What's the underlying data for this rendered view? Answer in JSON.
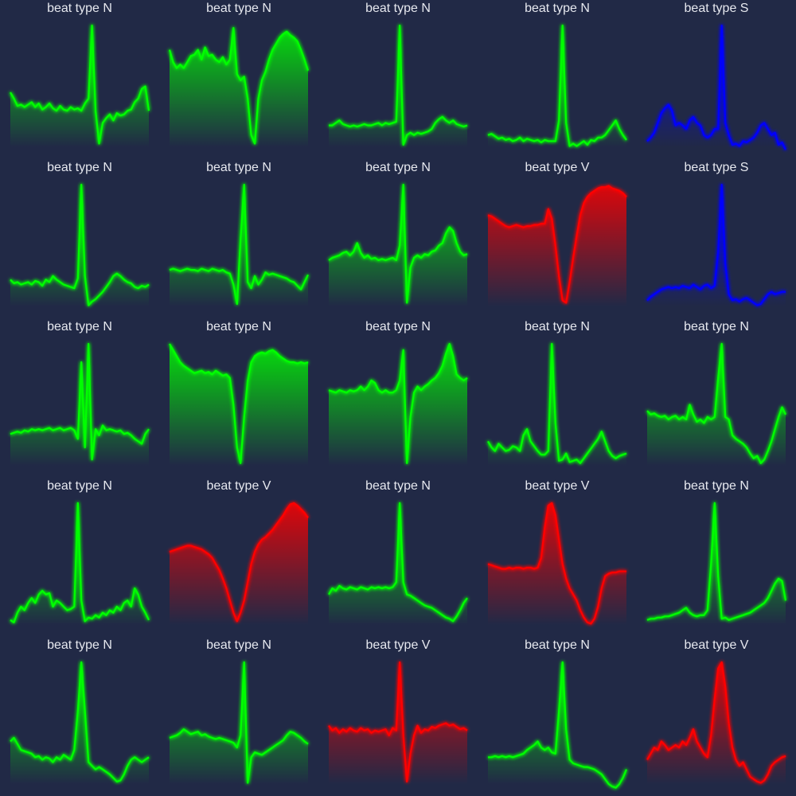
{
  "colors": {
    "background": "#212946",
    "N": "#00ff00",
    "S": "#0000ff",
    "V": "#ff0000"
  },
  "chart_data": [
    {
      "type": "line",
      "title": "beat type N",
      "beat": "N",
      "ylim": [
        0,
        1
      ],
      "values": [
        0.45,
        0.4,
        0.34,
        0.35,
        0.33,
        0.35,
        0.37,
        0.33,
        0.36,
        0.31,
        0.33,
        0.36,
        0.32,
        0.3,
        0.34,
        0.31,
        0.3,
        0.33,
        0.31,
        0.32,
        0.3,
        0.36,
        0.4,
        1.0,
        0.3,
        0.03,
        0.2,
        0.24,
        0.27,
        0.22,
        0.28,
        0.26,
        0.27,
        0.3,
        0.31,
        0.37,
        0.4,
        0.48,
        0.5,
        0.3
      ]
    },
    {
      "type": "line",
      "title": "beat type N",
      "beat": "N",
      "ylim": [
        0,
        1
      ],
      "values": [
        0.8,
        0.7,
        0.65,
        0.68,
        0.65,
        0.7,
        0.75,
        0.76,
        0.8,
        0.72,
        0.82,
        0.75,
        0.76,
        0.72,
        0.7,
        0.74,
        0.68,
        0.72,
        0.98,
        0.6,
        0.55,
        0.58,
        0.4,
        0.1,
        0.03,
        0.4,
        0.55,
        0.62,
        0.72,
        0.8,
        0.85,
        0.9,
        0.93,
        0.95,
        0.92,
        0.9,
        0.87,
        0.8,
        0.72,
        0.63
      ]
    },
    {
      "type": "line",
      "title": "beat type N",
      "beat": "N",
      "ylim": [
        0,
        1
      ],
      "values": [
        0.18,
        0.18,
        0.2,
        0.22,
        0.19,
        0.18,
        0.17,
        0.18,
        0.17,
        0.18,
        0.19,
        0.18,
        0.18,
        0.19,
        0.2,
        0.18,
        0.2,
        0.19,
        0.2,
        0.21,
        1.0,
        0.02,
        0.1,
        0.12,
        0.1,
        0.12,
        0.11,
        0.12,
        0.13,
        0.15,
        0.2,
        0.23,
        0.25,
        0.22,
        0.2,
        0.22,
        0.19,
        0.18,
        0.17,
        0.18
      ]
    },
    {
      "type": "line",
      "title": "beat type N",
      "beat": "N",
      "ylim": [
        0,
        1
      ],
      "values": [
        0.1,
        0.11,
        0.09,
        0.07,
        0.08,
        0.06,
        0.07,
        0.05,
        0.06,
        0.08,
        0.05,
        0.07,
        0.06,
        0.05,
        0.06,
        0.04,
        0.06,
        0.05,
        0.05,
        0.05,
        0.22,
        1.0,
        0.2,
        0.01,
        0.03,
        0.01,
        0.03,
        0.05,
        0.02,
        0.06,
        0.05,
        0.08,
        0.08,
        0.1,
        0.14,
        0.18,
        0.22,
        0.15,
        0.1,
        0.06
      ]
    },
    {
      "type": "line",
      "title": "beat type S",
      "beat": "S",
      "ylim": [
        0,
        1
      ],
      "values": [
        0.05,
        0.08,
        0.12,
        0.2,
        0.28,
        0.32,
        0.35,
        0.3,
        0.18,
        0.2,
        0.18,
        0.15,
        0.22,
        0.25,
        0.2,
        0.18,
        0.1,
        0.08,
        0.1,
        0.15,
        0.15,
        1.0,
        0.2,
        0.1,
        0.02,
        0.03,
        0.01,
        0.05,
        0.04,
        0.06,
        0.08,
        0.12,
        0.18,
        0.2,
        0.15,
        0.1,
        0.12,
        0.02,
        0.04,
        -0.02
      ]
    },
    {
      "type": "line",
      "title": "beat type N",
      "beat": "N",
      "ylim": [
        0,
        1
      ],
      "values": [
        0.22,
        0.19,
        0.2,
        0.18,
        0.19,
        0.2,
        0.18,
        0.21,
        0.2,
        0.17,
        0.22,
        0.2,
        0.25,
        0.22,
        0.2,
        0.18,
        0.17,
        0.16,
        0.15,
        0.23,
        1.0,
        0.25,
        0.01,
        0.04,
        0.06,
        0.09,
        0.12,
        0.16,
        0.2,
        0.25,
        0.27,
        0.25,
        0.22,
        0.2,
        0.19,
        0.16,
        0.15,
        0.17,
        0.16,
        0.18
      ]
    },
    {
      "type": "line",
      "title": "beat type N",
      "beat": "N",
      "ylim": [
        0,
        1
      ],
      "values": [
        0.3,
        0.31,
        0.3,
        0.29,
        0.3,
        0.31,
        0.3,
        0.3,
        0.29,
        0.31,
        0.3,
        0.29,
        0.31,
        0.3,
        0.29,
        0.3,
        0.28,
        0.27,
        0.18,
        0.02,
        0.55,
        1.0,
        0.2,
        0.15,
        0.25,
        0.18,
        0.22,
        0.28,
        0.26,
        0.27,
        0.26,
        0.25,
        0.24,
        0.23,
        0.21,
        0.2,
        0.17,
        0.14,
        0.2,
        0.26
      ]
    },
    {
      "type": "line",
      "title": "beat type N",
      "beat": "N",
      "ylim": [
        0,
        1
      ],
      "values": [
        0.38,
        0.4,
        0.41,
        0.42,
        0.44,
        0.45,
        0.42,
        0.45,
        0.52,
        0.44,
        0.4,
        0.42,
        0.39,
        0.4,
        0.38,
        0.39,
        0.38,
        0.39,
        0.4,
        0.38,
        0.5,
        1.0,
        0.03,
        0.32,
        0.4,
        0.42,
        0.4,
        0.43,
        0.42,
        0.45,
        0.46,
        0.5,
        0.52,
        0.6,
        0.65,
        0.62,
        0.52,
        0.45,
        0.42,
        0.43
      ]
    },
    {
      "type": "line",
      "title": "beat type V",
      "beat": "V",
      "ylim": [
        0,
        1
      ],
      "values": [
        0.75,
        0.74,
        0.72,
        0.7,
        0.68,
        0.66,
        0.65,
        0.66,
        0.67,
        0.66,
        0.65,
        0.66,
        0.66,
        0.67,
        0.67,
        0.68,
        0.68,
        0.8,
        0.72,
        0.5,
        0.25,
        0.05,
        0.03,
        0.2,
        0.4,
        0.58,
        0.75,
        0.85,
        0.9,
        0.93,
        0.95,
        0.97,
        0.98,
        0.98,
        0.99,
        0.97,
        0.96,
        0.95,
        0.93,
        0.9
      ]
    },
    {
      "type": "line",
      "title": "beat type S",
      "beat": "S",
      "ylim": [
        0,
        1
      ],
      "values": [
        0.05,
        0.08,
        0.1,
        0.12,
        0.14,
        0.15,
        0.16,
        0.15,
        0.16,
        0.15,
        0.17,
        0.16,
        0.15,
        0.18,
        0.16,
        0.14,
        0.17,
        0.18,
        0.15,
        0.17,
        0.45,
        1.0,
        0.35,
        0.1,
        0.05,
        0.06,
        0.04,
        0.06,
        0.07,
        0.05,
        0.03,
        0.01,
        0.02,
        0.06,
        0.1,
        0.12,
        0.1,
        0.11,
        0.12,
        0.12
      ]
    },
    {
      "type": "line",
      "title": "beat type N",
      "beat": "N",
      "ylim": [
        0,
        1
      ],
      "values": [
        0.26,
        0.27,
        0.28,
        0.27,
        0.29,
        0.28,
        0.3,
        0.29,
        0.3,
        0.29,
        0.3,
        0.31,
        0.29,
        0.3,
        0.31,
        0.29,
        0.3,
        0.31,
        0.29,
        0.22,
        0.85,
        0.15,
        1.0,
        0.05,
        0.3,
        0.25,
        0.33,
        0.29,
        0.3,
        0.29,
        0.28,
        0.29,
        0.26,
        0.27,
        0.25,
        0.22,
        0.2,
        0.18,
        0.26,
        0.3
      ]
    },
    {
      "type": "line",
      "title": "beat type N",
      "beat": "N",
      "ylim": [
        0,
        1
      ],
      "values": [
        1.0,
        0.95,
        0.9,
        0.85,
        0.82,
        0.8,
        0.78,
        0.76,
        0.77,
        0.78,
        0.76,
        0.77,
        0.75,
        0.78,
        0.76,
        0.74,
        0.75,
        0.72,
        0.5,
        0.15,
        0.02,
        0.4,
        0.7,
        0.85,
        0.9,
        0.92,
        0.93,
        0.92,
        0.94,
        0.95,
        0.93,
        0.9,
        0.88,
        0.86,
        0.85,
        0.85,
        0.84,
        0.85,
        0.84,
        0.85
      ]
    },
    {
      "type": "line",
      "title": "beat type N",
      "beat": "N",
      "ylim": [
        0,
        1
      ],
      "values": [
        0.62,
        0.61,
        0.6,
        0.62,
        0.61,
        0.6,
        0.62,
        0.61,
        0.62,
        0.65,
        0.62,
        0.65,
        0.7,
        0.68,
        0.62,
        0.6,
        0.62,
        0.6,
        0.6,
        0.62,
        0.7,
        0.95,
        0.02,
        0.4,
        0.6,
        0.65,
        0.62,
        0.65,
        0.67,
        0.7,
        0.72,
        0.76,
        0.82,
        0.92,
        1.0,
        0.9,
        0.75,
        0.72,
        0.7,
        0.72
      ]
    },
    {
      "type": "line",
      "title": "beat type N",
      "beat": "N",
      "ylim": [
        0,
        1
      ],
      "values": [
        0.2,
        0.15,
        0.12,
        0.18,
        0.15,
        0.12,
        0.13,
        0.16,
        0.15,
        0.12,
        0.25,
        0.3,
        0.2,
        0.16,
        0.12,
        0.09,
        0.09,
        0.12,
        1.0,
        0.35,
        0.04,
        0.05,
        0.1,
        0.03,
        0.04,
        0.05,
        0.02,
        0.06,
        0.1,
        0.14,
        0.18,
        0.22,
        0.28,
        0.2,
        0.12,
        0.08,
        0.06,
        0.08,
        0.09,
        0.1
      ]
    },
    {
      "type": "line",
      "title": "beat type N",
      "beat": "N",
      "ylim": [
        0,
        1
      ],
      "values": [
        0.45,
        0.42,
        0.43,
        0.41,
        0.4,
        0.41,
        0.38,
        0.4,
        0.41,
        0.38,
        0.4,
        0.38,
        0.5,
        0.42,
        0.36,
        0.38,
        0.35,
        0.4,
        0.38,
        0.4,
        0.72,
        1.0,
        0.4,
        0.38,
        0.25,
        0.22,
        0.2,
        0.18,
        0.15,
        0.1,
        0.06,
        0.08,
        0.02,
        0.05,
        0.12,
        0.2,
        0.3,
        0.4,
        0.48,
        0.42
      ]
    },
    {
      "type": "line",
      "title": "beat type N",
      "beat": "N",
      "ylim": [
        0,
        1
      ],
      "values": [
        0.04,
        0.02,
        0.1,
        0.15,
        0.12,
        0.18,
        0.22,
        0.18,
        0.25,
        0.28,
        0.25,
        0.26,
        0.15,
        0.2,
        0.18,
        0.15,
        0.12,
        0.13,
        0.15,
        1.0,
        0.2,
        0.03,
        0.06,
        0.05,
        0.08,
        0.06,
        0.1,
        0.08,
        0.12,
        0.1,
        0.15,
        0.12,
        0.18,
        0.2,
        0.15,
        0.3,
        0.25,
        0.15,
        0.1,
        0.04
      ]
    },
    {
      "type": "line",
      "title": "beat type V",
      "beat": "V",
      "ylim": [
        0,
        1
      ],
      "values": [
        0.6,
        0.61,
        0.62,
        0.63,
        0.64,
        0.65,
        0.65,
        0.64,
        0.63,
        0.62,
        0.6,
        0.58,
        0.55,
        0.5,
        0.45,
        0.38,
        0.3,
        0.2,
        0.1,
        0.03,
        0.1,
        0.2,
        0.35,
        0.5,
        0.6,
        0.66,
        0.7,
        0.72,
        0.75,
        0.78,
        0.82,
        0.86,
        0.9,
        0.95,
        0.99,
        1.0,
        0.98,
        0.95,
        0.92,
        0.88
      ]
    },
    {
      "type": "line",
      "title": "beat type N",
      "beat": "N",
      "ylim": [
        0,
        1
      ],
      "values": [
        0.25,
        0.3,
        0.28,
        0.32,
        0.3,
        0.29,
        0.31,
        0.3,
        0.29,
        0.31,
        0.3,
        0.29,
        0.31,
        0.3,
        0.31,
        0.3,
        0.31,
        0.3,
        0.31,
        0.35,
        1.0,
        0.35,
        0.25,
        0.24,
        0.22,
        0.2,
        0.18,
        0.16,
        0.15,
        0.14,
        0.12,
        0.1,
        0.08,
        0.06,
        0.05,
        0.03,
        0.07,
        0.12,
        0.18,
        0.22
      ]
    },
    {
      "type": "line",
      "title": "beat type V",
      "beat": "V",
      "ylim": [
        0,
        1
      ],
      "values": [
        0.5,
        0.49,
        0.48,
        0.47,
        0.46,
        0.46,
        0.47,
        0.46,
        0.47,
        0.47,
        0.46,
        0.47,
        0.47,
        0.46,
        0.47,
        0.55,
        0.8,
        0.98,
        1.0,
        0.9,
        0.7,
        0.5,
        0.38,
        0.3,
        0.25,
        0.2,
        0.12,
        0.06,
        0.02,
        0.01,
        0.05,
        0.15,
        0.3,
        0.4,
        0.42,
        0.43,
        0.43,
        0.44,
        0.44,
        0.44
      ]
    },
    {
      "type": "line",
      "title": "beat type N",
      "beat": "N",
      "ylim": [
        0,
        1
      ],
      "values": [
        0.04,
        0.05,
        0.05,
        0.06,
        0.06,
        0.07,
        0.07,
        0.08,
        0.09,
        0.1,
        0.12,
        0.14,
        0.1,
        0.08,
        0.07,
        0.08,
        0.08,
        0.12,
        0.5,
        1.0,
        0.4,
        0.05,
        0.06,
        0.04,
        0.05,
        0.06,
        0.07,
        0.08,
        0.09,
        0.1,
        0.12,
        0.14,
        0.16,
        0.18,
        0.22,
        0.28,
        0.34,
        0.38,
        0.36,
        0.2
      ]
    },
    {
      "type": "line",
      "title": "beat type N",
      "beat": "N",
      "ylim": [
        0,
        1
      ],
      "values": [
        0.35,
        0.38,
        0.33,
        0.28,
        0.27,
        0.26,
        0.25,
        0.22,
        0.23,
        0.2,
        0.22,
        0.21,
        0.18,
        0.22,
        0.2,
        0.24,
        0.22,
        0.2,
        0.28,
        0.6,
        1.0,
        0.6,
        0.18,
        0.15,
        0.12,
        0.14,
        0.12,
        0.1,
        0.08,
        0.05,
        0.02,
        0.03,
        0.08,
        0.15,
        0.2,
        0.22,
        0.2,
        0.18,
        0.2,
        0.22
      ]
    },
    {
      "type": "line",
      "title": "beat type N",
      "beat": "N",
      "ylim": [
        0,
        1
      ],
      "values": [
        0.38,
        0.39,
        0.4,
        0.42,
        0.45,
        0.43,
        0.41,
        0.42,
        0.43,
        0.4,
        0.41,
        0.39,
        0.38,
        0.37,
        0.38,
        0.37,
        0.36,
        0.35,
        0.34,
        0.3,
        0.4,
        1.0,
        0.01,
        0.22,
        0.26,
        0.25,
        0.24,
        0.26,
        0.28,
        0.3,
        0.32,
        0.34,
        0.36,
        0.4,
        0.43,
        0.42,
        0.4,
        0.38,
        0.35,
        0.33
      ]
    },
    {
      "type": "line",
      "title": "beat type V",
      "beat": "V",
      "ylim": [
        0,
        1
      ],
      "values": [
        0.48,
        0.44,
        0.46,
        0.42,
        0.45,
        0.43,
        0.46,
        0.44,
        0.43,
        0.46,
        0.44,
        0.45,
        0.42,
        0.44,
        0.43,
        0.44,
        0.45,
        0.4,
        0.46,
        0.44,
        1.0,
        0.4,
        0.02,
        0.25,
        0.4,
        0.48,
        0.42,
        0.45,
        0.44,
        0.47,
        0.46,
        0.48,
        0.49,
        0.5,
        0.48,
        0.49,
        0.47,
        0.45,
        0.46,
        0.44
      ]
    },
    {
      "type": "line",
      "title": "beat type N",
      "beat": "N",
      "ylim": [
        0,
        1
      ],
      "values": [
        0.22,
        0.22,
        0.23,
        0.22,
        0.23,
        0.22,
        0.23,
        0.22,
        0.23,
        0.24,
        0.25,
        0.28,
        0.3,
        0.32,
        0.35,
        0.3,
        0.28,
        0.3,
        0.26,
        0.25,
        0.6,
        1.0,
        0.45,
        0.2,
        0.17,
        0.16,
        0.15,
        0.14,
        0.14,
        0.13,
        0.12,
        0.1,
        0.08,
        0.04,
        0.0,
        -0.02,
        -0.03,
        0.0,
        0.05,
        0.12
      ]
    },
    {
      "type": "line",
      "title": "beat type V",
      "beat": "V",
      "ylim": [
        0,
        1
      ],
      "values": [
        0.2,
        0.25,
        0.3,
        0.28,
        0.35,
        0.32,
        0.28,
        0.3,
        0.32,
        0.3,
        0.35,
        0.32,
        0.38,
        0.45,
        0.35,
        0.3,
        0.25,
        0.22,
        0.4,
        0.7,
        0.95,
        1.0,
        0.8,
        0.5,
        0.3,
        0.2,
        0.15,
        0.18,
        0.12,
        0.06,
        0.04,
        0.02,
        0.01,
        0.03,
        0.08,
        0.15,
        0.18,
        0.2,
        0.22,
        0.23
      ]
    }
  ]
}
